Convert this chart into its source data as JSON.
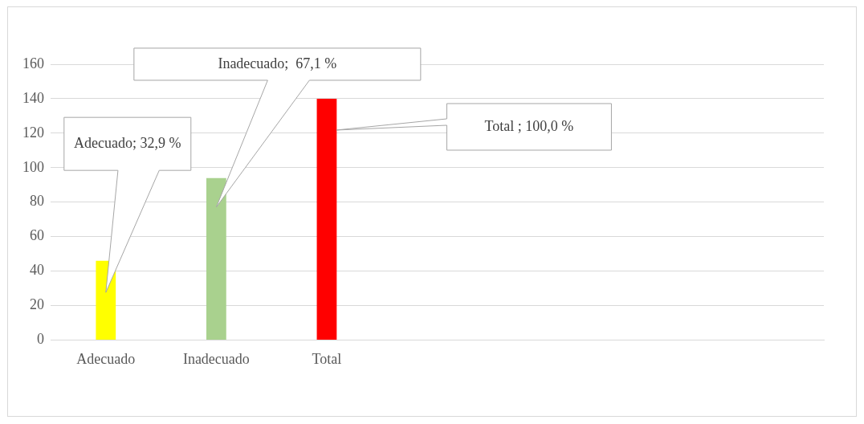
{
  "chart_data": {
    "type": "bar",
    "categories": [
      "Adecuado",
      "Inadecuado",
      "Total",
      null,
      null,
      null,
      null
    ],
    "colors": [
      "#ffff00",
      "#a9d18e",
      "#ff0000",
      null,
      null,
      null,
      null
    ],
    "values": [
      46,
      94,
      140,
      null,
      null,
      null,
      null
    ],
    "ylim": [
      0,
      160
    ],
    "yticks": [
      0,
      20,
      40,
      60,
      80,
      100,
      120,
      140,
      160
    ],
    "grid": "y",
    "legend": false,
    "annotations": [
      "Adecuado; 32,9 %",
      "Inadecuado;  67,1 %",
      "Total ; 100,0 %"
    ]
  }
}
